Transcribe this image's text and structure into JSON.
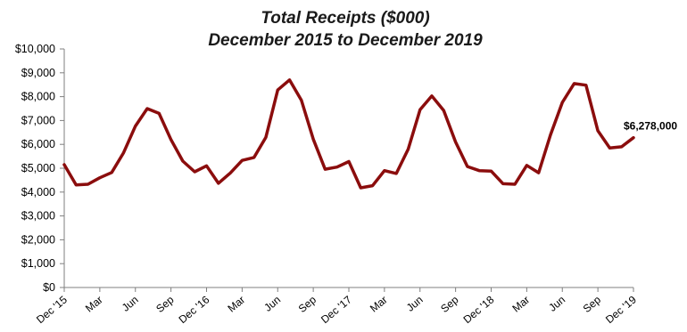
{
  "chart_data": {
    "type": "line",
    "title": "Total Receipts ($000)",
    "subtitle": "December 2015 to December 2019",
    "xlabel": "",
    "ylabel": "",
    "ylim": [
      0,
      10000
    ],
    "yticks": [
      "$0",
      "$1,000",
      "$2,000",
      "$3,000",
      "$4,000",
      "$5,000",
      "$6,000",
      "$7,000",
      "$8,000",
      "$9,000",
      "$10,000"
    ],
    "grid": false,
    "xticklabels": [
      "Dec '15",
      "Mar",
      "Jun",
      "Sep",
      "Dec '16",
      "Mar",
      "Jun",
      "Sep",
      "Dec '17",
      "Mar",
      "Jun",
      "Sep",
      "Dec '18",
      "Mar",
      "Jun",
      "Sep",
      "Dec '19"
    ],
    "x": [
      "Dec 2015",
      "Jan 2016",
      "Feb 2016",
      "Mar 2016",
      "Apr 2016",
      "May 2016",
      "Jun 2016",
      "Jul 2016",
      "Aug 2016",
      "Sep 2016",
      "Oct 2016",
      "Nov 2016",
      "Dec 2016",
      "Jan 2017",
      "Feb 2017",
      "Mar 2017",
      "Apr 2017",
      "May 2017",
      "Jun 2017",
      "Jul 2017",
      "Aug 2017",
      "Sep 2017",
      "Oct 2017",
      "Nov 2017",
      "Dec 2017",
      "Jan 2018",
      "Feb 2018",
      "Mar 2018",
      "Apr 2018",
      "May 2018",
      "Jun 2018",
      "Jul 2018",
      "Aug 2018",
      "Sep 2018",
      "Oct 2018",
      "Nov 2018",
      "Dec 2018",
      "Jan 2019",
      "Feb 2019",
      "Mar 2019",
      "Apr 2019",
      "May 2019",
      "Jun 2019",
      "Jul 2019",
      "Aug 2019",
      "Sep 2019",
      "Oct 2019",
      "Nov 2019",
      "Dec 2019"
    ],
    "series": [
      {
        "color": "#8b0d0d",
        "values": [
          5150,
          4300,
          4330,
          4600,
          4820,
          5650,
          6770,
          7500,
          7300,
          6200,
          5300,
          4850,
          5100,
          4370,
          4800,
          5330,
          5450,
          6300,
          8280,
          8700,
          7850,
          6220,
          4960,
          5050,
          5280,
          4180,
          4270,
          4900,
          4780,
          5800,
          7450,
          8030,
          7420,
          6100,
          5070,
          4900,
          4880,
          4350,
          4330,
          5120,
          4810,
          6400,
          7760,
          8550,
          8480,
          6570,
          5850,
          5900,
          6278
        ]
      }
    ],
    "annotation": {
      "text": "$6,278,000",
      "index": 48
    }
  }
}
